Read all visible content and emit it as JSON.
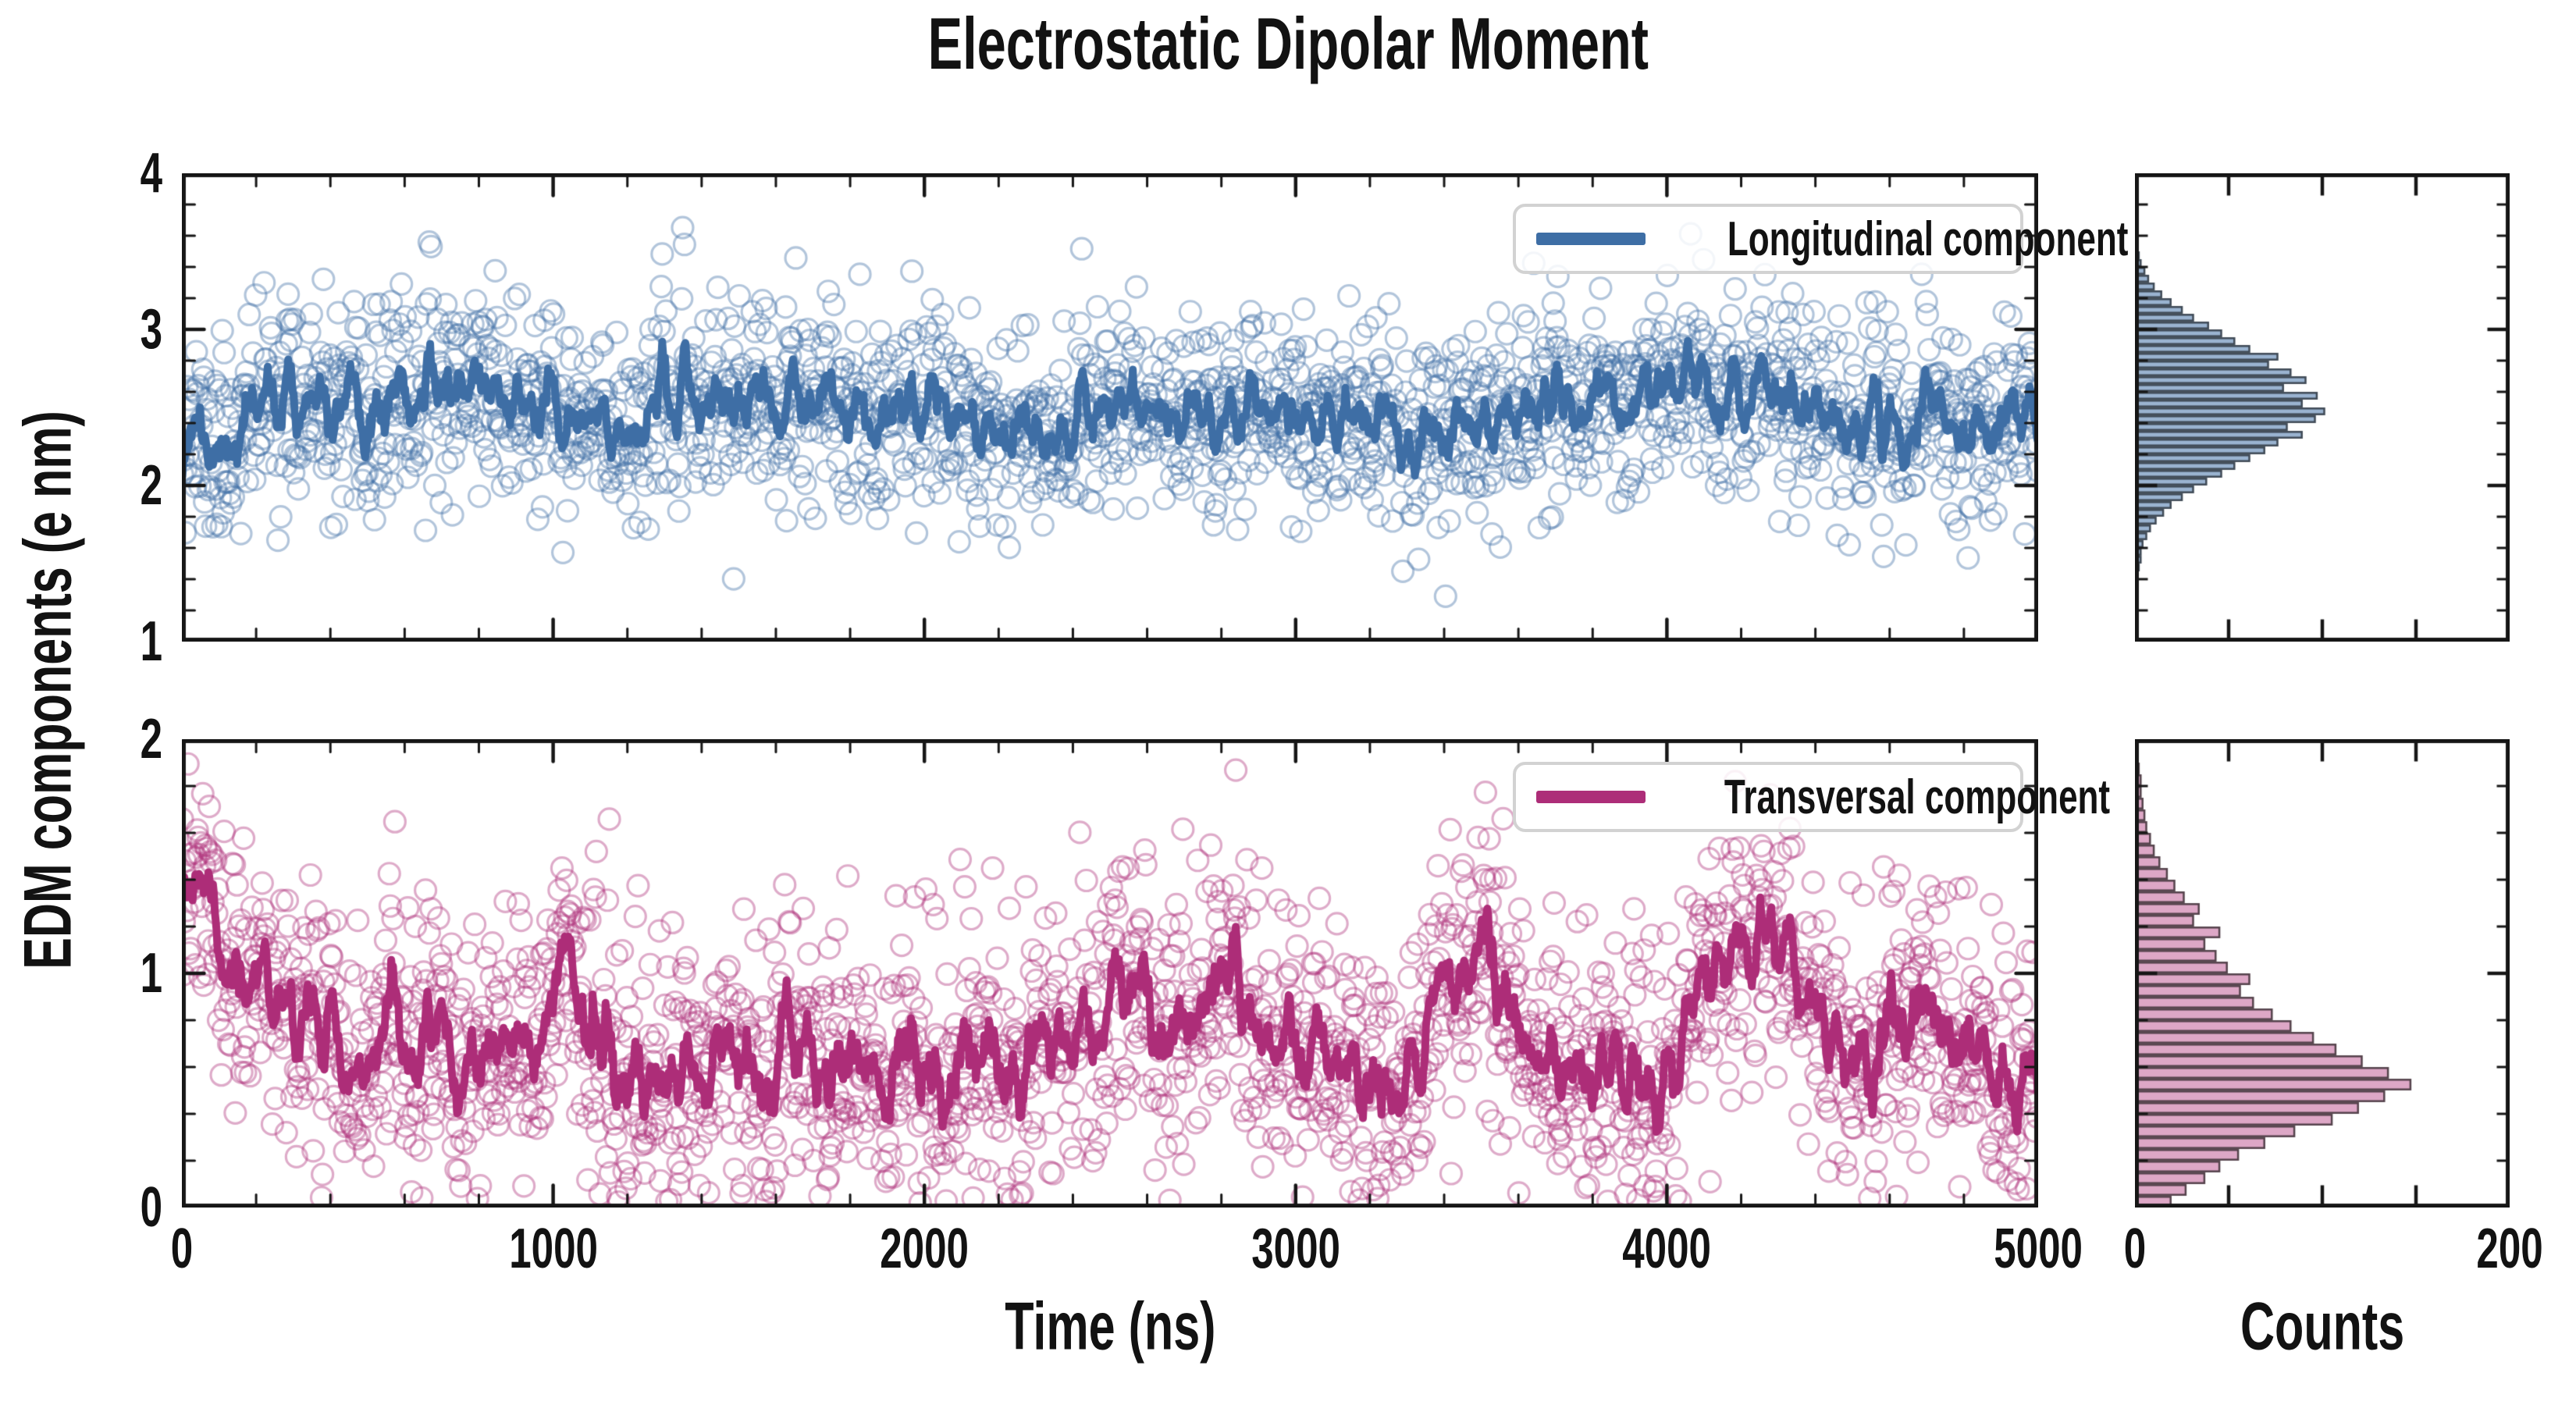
{
  "title": "Electrostatic Dipolar Moment",
  "axes": {
    "x_label": "Time (ns)",
    "y_label": "EDM components (e nm)",
    "counts_label": "Counts",
    "x_ticks": [
      0,
      1000,
      2000,
      3000,
      4000,
      5000
    ],
    "x_minor_step": 200,
    "top_y_ticks": [
      1,
      2,
      3,
      4
    ],
    "bottom_y_ticks": [
      0,
      1,
      2
    ],
    "y_minor_step": 0.2,
    "counts_axis_ticks": [
      0,
      50,
      100,
      150,
      200
    ],
    "counts_labeled_ticks": [
      0,
      200
    ]
  },
  "colors": {
    "longitudinal_line": "#3e6ea5",
    "longitudinal_marker": "rgba(62,110,165,0.40)",
    "longitudinal_hist_fill": "rgba(62,110,165,0.52)",
    "longitudinal_hist_edge": "#3f4a56",
    "transversal_line": "#ad2d78",
    "transversal_marker": "rgba(173,45,120,0.40)",
    "transversal_hist_fill": "rgba(173,45,120,0.42)",
    "transversal_hist_edge": "#54424b",
    "frame": "#161616"
  },
  "legends": [
    {
      "label": "Longitudinal component",
      "color": "#3e6ea5"
    },
    {
      "label": "Transversal component",
      "color": "#ad2d78"
    }
  ],
  "chart_data": [
    {
      "id": "longitudinal_timeseries",
      "type": "scatter",
      "series_name": "Longitudinal component",
      "x_range": [
        0,
        5000
      ],
      "y_range": [
        1,
        4
      ],
      "x_major_ticks": [
        0,
        1000,
        2000,
        3000,
        4000,
        5000
      ],
      "x_minor_step": 200,
      "y_major_ticks": [
        1,
        2,
        3,
        4
      ],
      "y_minor_step": 0.2,
      "n_points": 2000,
      "point_sd": 0.33,
      "seed": 11,
      "clip_negative": false,
      "moving_avg_window": 9,
      "mean_line": {
        "x": [
          0,
          90,
          250,
          450,
          600,
          790,
          1000,
          1150,
          1300,
          1500,
          1700,
          1900,
          2100,
          2300,
          2500,
          2700,
          2900,
          3100,
          3350,
          3500,
          3700,
          3900,
          4100,
          4300,
          4500,
          4700,
          4900,
          5000
        ],
        "y": [
          2.45,
          2.2,
          2.6,
          2.35,
          2.55,
          2.7,
          2.4,
          2.35,
          2.5,
          2.55,
          2.45,
          2.55,
          2.5,
          2.35,
          2.55,
          2.45,
          2.5,
          2.45,
          2.25,
          2.45,
          2.6,
          2.55,
          2.65,
          2.55,
          2.35,
          2.45,
          2.4,
          2.45
        ]
      }
    },
    {
      "id": "longitudinal_histogram",
      "type": "bar",
      "orientation": "horizontal",
      "x_range": [
        0,
        200
      ],
      "y_range": [
        1,
        4
      ],
      "x_major_ticks": [
        0,
        50,
        100,
        150,
        200
      ],
      "y_major_ticks": [
        1,
        2,
        3,
        4
      ],
      "y_minor_step": 0.2,
      "bin_start": 1.45,
      "bin_width": 0.05,
      "counts": [
        1,
        2,
        2,
        3,
        5,
        7,
        10,
        14,
        18,
        24,
        30,
        37,
        45,
        52,
        60,
        68,
        75,
        88,
        80,
        95,
        100,
        88,
        96,
        78,
        90,
        82,
        70,
        75,
        60,
        52,
        45,
        38,
        30,
        24,
        18,
        13,
        9,
        6,
        4,
        2,
        1
      ]
    },
    {
      "id": "transversal_timeseries",
      "type": "scatter",
      "series_name": "Transversal component",
      "x_range": [
        0,
        5000
      ],
      "y_range": [
        0,
        2
      ],
      "x_major_ticks": [
        0,
        1000,
        2000,
        3000,
        4000,
        5000
      ],
      "x_minor_step": 200,
      "y_major_ticks": [
        0,
        1,
        2
      ],
      "y_minor_step": 0.2,
      "n_points": 2000,
      "point_sd": 0.3,
      "seed": 23,
      "clip_negative": true,
      "moving_avg_window": 9,
      "mean_line": {
        "x": [
          0,
          40,
          120,
          250,
          400,
          500,
          650,
          800,
          950,
          1040,
          1120,
          1250,
          1400,
          1550,
          1700,
          1850,
          2000,
          2150,
          2300,
          2450,
          2550,
          2650,
          2800,
          2870,
          2950,
          3100,
          3250,
          3400,
          3500,
          3600,
          3750,
          3900,
          3960,
          4050,
          4150,
          4250,
          4320,
          4400,
          4500,
          4600,
          4700,
          4800,
          4900,
          5000
        ],
        "y": [
          1.05,
          1.5,
          0.95,
          0.9,
          0.8,
          0.65,
          0.68,
          0.55,
          0.62,
          1.15,
          0.68,
          0.5,
          0.6,
          0.55,
          0.62,
          0.52,
          0.6,
          0.65,
          0.6,
          0.68,
          1.05,
          0.65,
          1.0,
          0.95,
          0.62,
          0.65,
          0.5,
          0.85,
          1.1,
          0.72,
          0.62,
          0.55,
          0.42,
          0.68,
          1.0,
          1.3,
          1.15,
          0.9,
          0.6,
          0.7,
          0.9,
          0.62,
          0.55,
          0.6
        ]
      }
    },
    {
      "id": "transversal_histogram",
      "type": "bar",
      "orientation": "horizontal",
      "x_range": [
        0,
        200
      ],
      "y_range": [
        0,
        2
      ],
      "x_major_ticks": [
        0,
        50,
        100,
        150,
        200
      ],
      "y_major_ticks": [
        0,
        1,
        2
      ],
      "y_minor_step": 0.2,
      "bin_start": 0.0,
      "bin_width": 0.05,
      "counts": [
        18,
        26,
        36,
        44,
        54,
        68,
        84,
        104,
        118,
        132,
        146,
        134,
        120,
        106,
        94,
        82,
        72,
        62,
        55,
        60,
        48,
        42,
        36,
        44,
        30,
        33,
        25,
        20,
        16,
        12,
        9,
        7,
        5,
        4,
        3,
        2,
        2,
        1
      ]
    }
  ]
}
